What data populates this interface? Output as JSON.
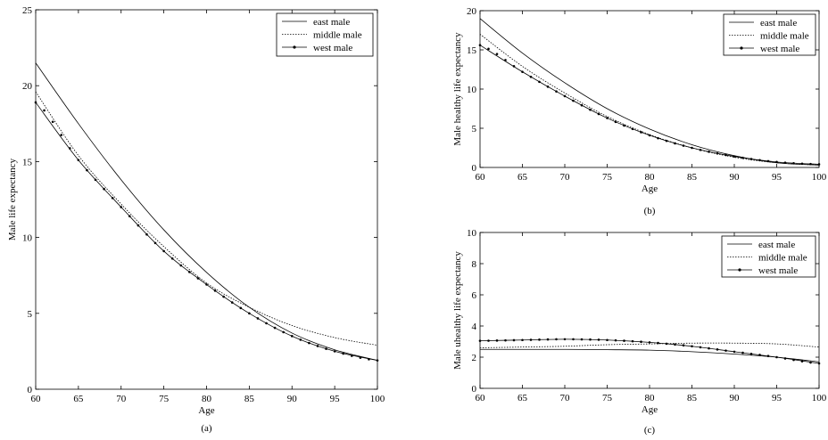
{
  "chart_data": [
    {
      "type": "line",
      "panel_label": "(a)",
      "xlabel": "Age",
      "ylabel": "Male life expectancy",
      "xlim": [
        60,
        100
      ],
      "ylim": [
        0,
        25
      ],
      "xticks": [
        60,
        65,
        70,
        75,
        80,
        85,
        90,
        95,
        100
      ],
      "yticks": [
        0,
        5,
        10,
        15,
        20,
        25
      ],
      "legend": "top-right",
      "x": [
        60,
        65,
        70,
        75,
        80,
        85,
        90,
        95,
        100
      ],
      "series": [
        {
          "name": "east male",
          "style": "solid",
          "values": [
            21.5,
            17.5,
            13.8,
            10.5,
            7.7,
            5.4,
            3.7,
            2.6,
            1.9
          ]
        },
        {
          "name": "middle male",
          "style": "dotted",
          "values": [
            19.6,
            15.4,
            12.2,
            9.4,
            7.0,
            5.4,
            4.2,
            3.4,
            2.9
          ]
        },
        {
          "name": "west male",
          "style": "marker",
          "values": [
            18.9,
            15.1,
            12.0,
            9.1,
            6.9,
            5.0,
            3.5,
            2.5,
            1.9
          ]
        }
      ]
    },
    {
      "type": "line",
      "panel_label": "(b)",
      "xlabel": "Age",
      "ylabel": "Male healthy life expectancy",
      "xlim": [
        60,
        100
      ],
      "ylim": [
        0,
        20
      ],
      "xticks": [
        60,
        65,
        70,
        75,
        80,
        85,
        90,
        95,
        100
      ],
      "yticks": [
        0,
        5,
        10,
        15,
        20
      ],
      "legend": "top-right",
      "x": [
        60,
        65,
        70,
        75,
        80,
        85,
        90,
        95,
        100
      ],
      "series": [
        {
          "name": "east male",
          "style": "solid",
          "values": [
            19.0,
            14.6,
            10.8,
            7.5,
            4.9,
            2.9,
            1.5,
            0.6,
            0.3
          ]
        },
        {
          "name": "middle male",
          "style": "dotted",
          "values": [
            17.0,
            12.9,
            9.5,
            6.5,
            4.2,
            2.5,
            1.3,
            0.6,
            0.3
          ]
        },
        {
          "name": "west male",
          "style": "marker",
          "values": [
            15.6,
            12.2,
            9.1,
            6.3,
            4.1,
            2.5,
            1.4,
            0.7,
            0.4
          ]
        }
      ]
    },
    {
      "type": "line",
      "panel_label": "(c)",
      "xlabel": "Age",
      "ylabel": "Male uhealthy life expectancy",
      "xlim": [
        60,
        100
      ],
      "ylim": [
        0,
        10
      ],
      "xticks": [
        60,
        65,
        70,
        75,
        80,
        85,
        90,
        95,
        100
      ],
      "yticks": [
        0,
        2,
        4,
        6,
        8,
        10
      ],
      "legend": "top-right",
      "x": [
        60,
        65,
        70,
        75,
        80,
        85,
        90,
        95,
        100
      ],
      "series": [
        {
          "name": "east male",
          "style": "solid",
          "values": [
            2.5,
            2.5,
            2.5,
            2.48,
            2.45,
            2.35,
            2.2,
            2.0,
            1.7
          ]
        },
        {
          "name": "middle male",
          "style": "dotted",
          "values": [
            2.6,
            2.65,
            2.7,
            2.8,
            2.85,
            2.9,
            2.9,
            2.85,
            2.65
          ]
        },
        {
          "name": "west male",
          "style": "marker",
          "values": [
            3.05,
            3.1,
            3.15,
            3.1,
            2.95,
            2.7,
            2.35,
            2.0,
            1.6
          ]
        }
      ]
    }
  ]
}
